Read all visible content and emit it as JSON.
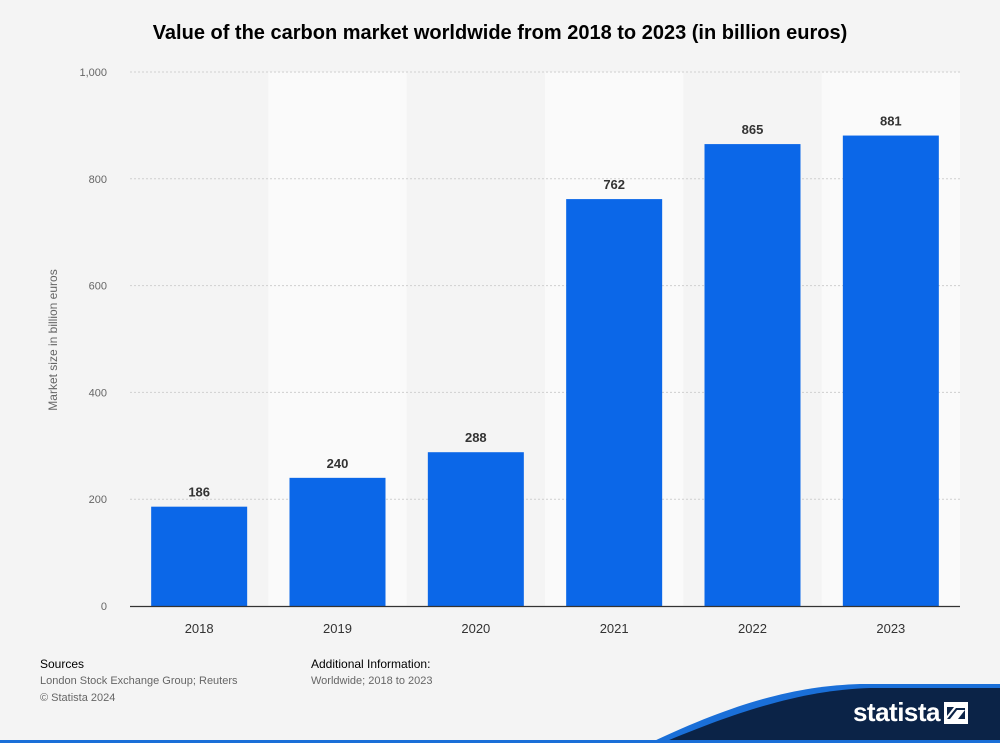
{
  "chart_data": {
    "type": "bar",
    "title": "Value of the carbon market worldwide from 2018 to 2023 (in billion euros)",
    "xlabel": "",
    "ylabel": "Market size in billion euros",
    "categories": [
      "2018",
      "2019",
      "2020",
      "2021",
      "2022",
      "2023"
    ],
    "values": [
      186,
      240,
      288,
      762,
      865,
      881
    ],
    "ylim": [
      0,
      1000
    ],
    "yticks": [
      0,
      200,
      400,
      600,
      800,
      1000
    ],
    "ytick_labels": [
      "0",
      "200",
      "400",
      "600",
      "800",
      "1,000"
    ],
    "grid": true,
    "bar_color": "#0b67e8"
  },
  "footer": {
    "sources_heading": "Sources",
    "sources_text": "London Stock Exchange Group; Reuters",
    "copyright": "© Statista 2024",
    "additional_heading": "Additional Information:",
    "additional_text": "Worldwide; 2018 to 2023"
  },
  "brand": {
    "name": "statista",
    "wave_color": "#0b2347",
    "accent_color": "#1a6fd8"
  }
}
